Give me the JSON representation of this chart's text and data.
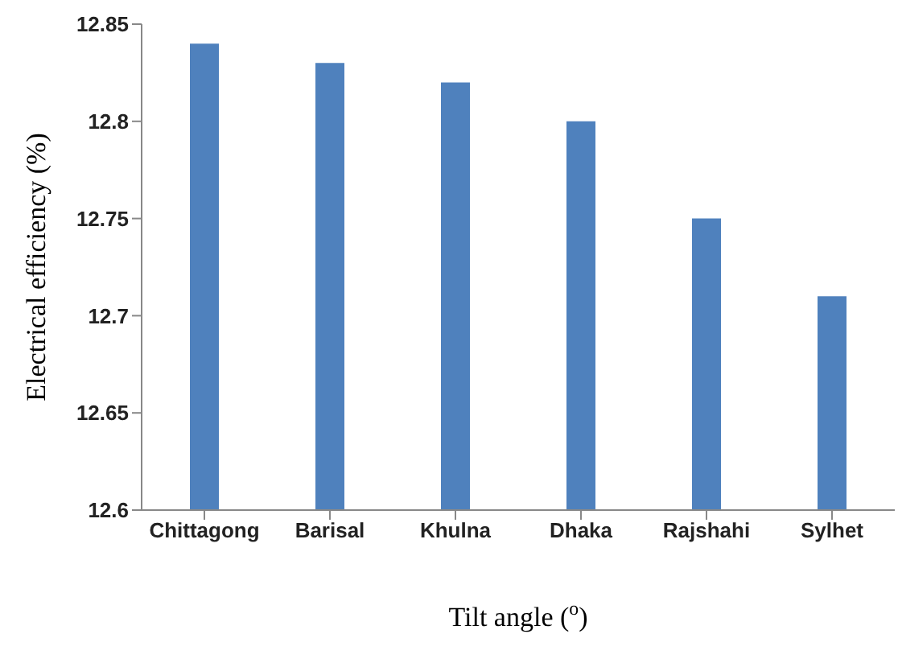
{
  "chart_data": {
    "type": "bar",
    "xlabel": "Tilt angle ($^{o}$)",
    "ylabel": "Electrical efficiency (%)",
    "categories": [
      "Chittagong",
      "Barisal",
      "Khulna",
      "Dhaka",
      "Rajshahi",
      "Sylhet"
    ],
    "values": [
      12.84,
      12.83,
      12.82,
      12.8,
      12.75,
      12.71
    ],
    "color": "#4f81bd",
    "ylim": [
      12.6,
      12.85
    ],
    "yticks": [
      12.6,
      12.65,
      12.7,
      12.75,
      12.8,
      12.85
    ]
  }
}
